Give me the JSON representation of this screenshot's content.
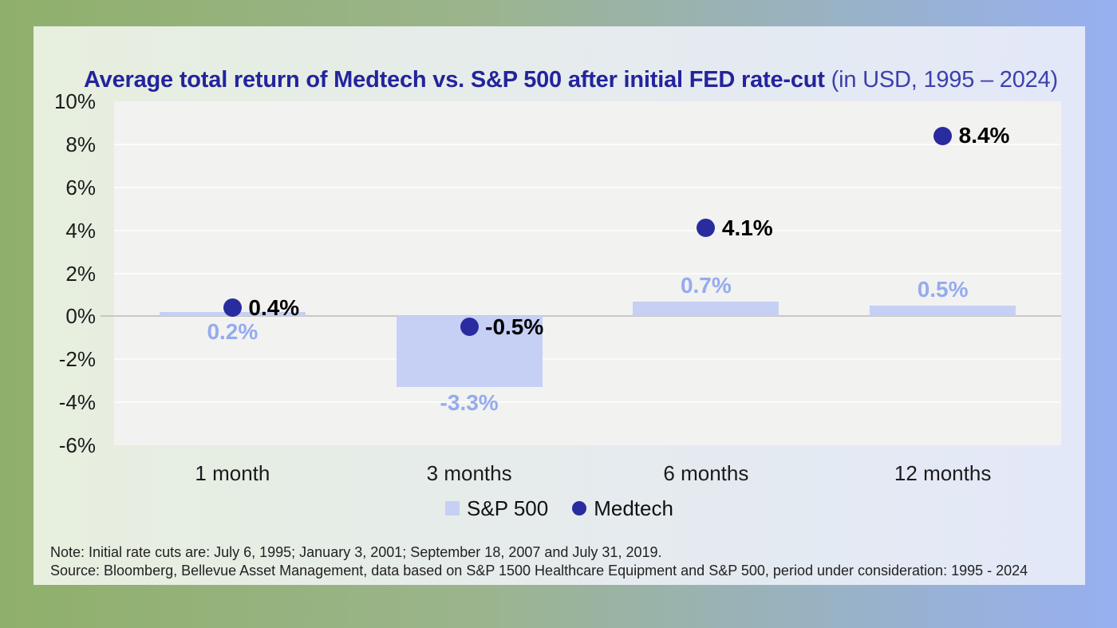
{
  "title": {
    "main": "Average total return of Medtech vs. S&P 500 after initial FED rate-cut",
    "suffix": " (in USD, 1995 – 2024)"
  },
  "legend": [
    {
      "label": "S&P 500",
      "marker": "square",
      "color": "#c6d0f5"
    },
    {
      "label": "Medtech",
      "marker": "circle",
      "color": "#282c9e"
    }
  ],
  "footnotes": {
    "note": "Note: Initial rate cuts are: July 6, 1995; January 3, 2001; September 18, 2007 and July 31, 2019.",
    "source": "Source: Bloomberg, Bellevue Asset Management, data based on S&P 1500 Healthcare Equipment and S&P 500, period under consideration: 1995 - 2024"
  },
  "chart_data": {
    "type": "bar",
    "title": "Average total return of Medtech vs. S&P 500 after initial FED rate-cut (in USD, 1995 – 2024)",
    "categories": [
      "1 month",
      "3 months",
      "6 months",
      "12 months"
    ],
    "series": [
      {
        "name": "S&P 500",
        "type": "bar",
        "color": "#c6d0f5",
        "values": [
          0.2,
          -3.3,
          0.7,
          0.5
        ],
        "labels": [
          "0.2%",
          "-3.3%",
          "0.7%",
          "0.5%"
        ],
        "label_color": "#94abef",
        "label_positions": [
          "below-axis",
          "below-bar",
          "above-bar",
          "above-bar"
        ]
      },
      {
        "name": "Medtech",
        "type": "scatter",
        "color": "#282c9e",
        "values": [
          0.4,
          -0.5,
          4.1,
          8.4
        ],
        "labels": [
          "0.4%",
          "-0.5%",
          "4.1%",
          "8.4%"
        ],
        "label_color": "#000000"
      }
    ],
    "yticks": [
      "10%",
      "8%",
      "6%",
      "4%",
      "2%",
      "0%",
      "-2%",
      "-4%",
      "-6%"
    ],
    "ytick_values": [
      10,
      8,
      6,
      4,
      2,
      0,
      -2,
      -4,
      -6
    ],
    "ylim": [
      -6,
      10
    ],
    "xlabel": "",
    "ylabel": "",
    "grid": true,
    "legend_position": "bottom"
  },
  "colors": {
    "background_left": "#8fb06b",
    "background_right": "#97b0f1",
    "card_left": "#e7efde",
    "card_right": "#e3e8f9",
    "plot_background": "#f2f2f1",
    "gridline": "#fbfbfa",
    "zero_line": "#c8c8c8",
    "title_bold": "#23249c",
    "title_regular": "#3c40ad",
    "axis_text": "#1c1c1c"
  }
}
